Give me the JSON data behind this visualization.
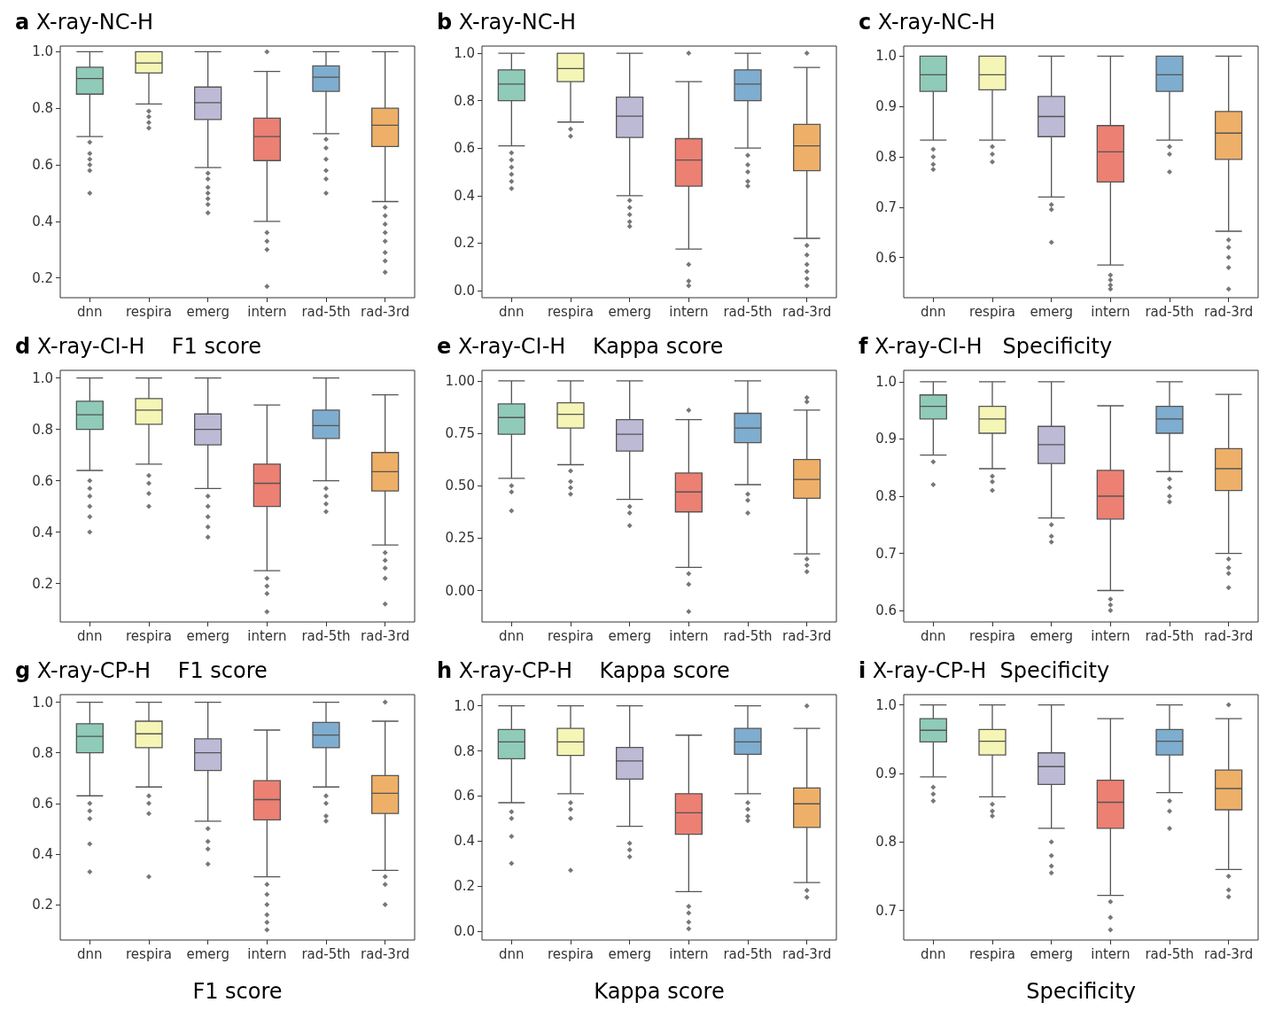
{
  "chart_data": [
    {
      "type": "box",
      "title": "a X-ray-NC-H",
      "categories": [
        "dnn",
        "respira",
        "emerg",
        "intern",
        "rad-5th",
        "rad-3rd"
      ],
      "colors": [
        "#8fcbb8",
        "#f5f5b5",
        "#bdbad6",
        "#ec8073",
        "#7fadcf",
        "#eeb068"
      ],
      "ylim": [
        0.13,
        1.02
      ],
      "yticks": [
        {
          "value": 0.2,
          "label": "0.2"
        },
        {
          "value": 0.4,
          "label": "0.4"
        },
        {
          "value": 0.6,
          "label": "0.6"
        },
        {
          "value": 0.8,
          "label": "0.8"
        },
        {
          "value": 1.0,
          "label": "1.0"
        }
      ],
      "grid": false,
      "marker": "diamond",
      "boxes": [
        {
          "low": 0.7,
          "q1": 0.85,
          "median": 0.905,
          "q3": 0.945,
          "high": 1.0,
          "outliers": [
            0.68,
            0.64,
            0.62,
            0.6,
            0.58,
            0.5
          ]
        },
        {
          "low": 0.815,
          "q1": 0.925,
          "median": 0.96,
          "q3": 1.0,
          "high": 1.0,
          "outliers": [
            0.79,
            0.77,
            0.75,
            0.73
          ]
        },
        {
          "low": 0.59,
          "q1": 0.76,
          "median": 0.82,
          "q3": 0.875,
          "high": 1.0,
          "outliers": [
            0.57,
            0.55,
            0.52,
            0.5,
            0.48,
            0.46,
            0.43
          ]
        },
        {
          "low": 0.4,
          "q1": 0.615,
          "median": 0.7,
          "q3": 0.765,
          "high": 0.93,
          "outliers": [
            1.0,
            0.36,
            0.33,
            0.3,
            0.17
          ]
        },
        {
          "low": 0.71,
          "q1": 0.86,
          "median": 0.91,
          "q3": 0.95,
          "high": 1.0,
          "outliers": [
            0.69,
            0.66,
            0.62,
            0.58,
            0.55,
            0.5
          ]
        },
        {
          "low": 0.47,
          "q1": 0.665,
          "median": 0.74,
          "q3": 0.8,
          "high": 1.0,
          "outliers": [
            0.45,
            0.42,
            0.39,
            0.36,
            0.33,
            0.29,
            0.26,
            0.22
          ]
        }
      ]
    },
    {
      "type": "box",
      "title": "b X-ray-NC-H",
      "categories": [
        "dnn",
        "respira",
        "emerg",
        "intern",
        "rad-5th",
        "rad-3rd"
      ],
      "colors": [
        "#8fcbb8",
        "#f5f5b5",
        "#bdbad6",
        "#ec8073",
        "#7fadcf",
        "#eeb068"
      ],
      "ylim": [
        -0.03,
        1.03
      ],
      "yticks": [
        {
          "value": 0,
          "label": "0.0"
        },
        {
          "value": 0.2,
          "label": "0.2"
        },
        {
          "value": 0.4,
          "label": "0.4"
        },
        {
          "value": 0.6,
          "label": "0.6"
        },
        {
          "value": 0.8,
          "label": "0.8"
        },
        {
          "value": 1.0,
          "label": "1.0"
        }
      ],
      "grid": false,
      "marker": "diamond",
      "boxes": [
        {
          "low": 0.61,
          "q1": 0.8,
          "median": 0.87,
          "q3": 0.93,
          "high": 1.0,
          "outliers": [
            0.58,
            0.55,
            0.52,
            0.49,
            0.46,
            0.43
          ]
        },
        {
          "low": 0.71,
          "q1": 0.88,
          "median": 0.935,
          "q3": 1.0,
          "high": 1.0,
          "outliers": [
            0.68,
            0.65
          ]
        },
        {
          "low": 0.4,
          "q1": 0.645,
          "median": 0.735,
          "q3": 0.815,
          "high": 1.0,
          "outliers": [
            0.38,
            0.35,
            0.32,
            0.29,
            0.27
          ]
        },
        {
          "low": 0.175,
          "q1": 0.44,
          "median": 0.55,
          "q3": 0.64,
          "high": 0.88,
          "outliers": [
            1.0,
            0.11,
            0.04,
            0.02
          ]
        },
        {
          "low": 0.6,
          "q1": 0.8,
          "median": 0.87,
          "q3": 0.93,
          "high": 1.0,
          "outliers": [
            0.57,
            0.53,
            0.5,
            0.46,
            0.44
          ]
        },
        {
          "low": 0.22,
          "q1": 0.505,
          "median": 0.61,
          "q3": 0.7,
          "high": 0.94,
          "outliers": [
            1.0,
            0.19,
            0.15,
            0.11,
            0.08,
            0.05,
            0.02
          ]
        }
      ]
    },
    {
      "type": "box",
      "title": "c X-ray-NC-H",
      "categories": [
        "dnn",
        "respira",
        "emerg",
        "intern",
        "rad-5th",
        "rad-3rd"
      ],
      "colors": [
        "#8fcbb8",
        "#f5f5b5",
        "#bdbad6",
        "#ec8073",
        "#7fadcf",
        "#eeb068"
      ],
      "ylim": [
        0.52,
        1.02
      ],
      "yticks": [
        {
          "value": 0.6,
          "label": "0.6"
        },
        {
          "value": 0.7,
          "label": "0.7"
        },
        {
          "value": 0.8,
          "label": "0.8"
        },
        {
          "value": 0.9,
          "label": "0.9"
        },
        {
          "value": 1.0,
          "label": "1.0"
        }
      ],
      "grid": false,
      "marker": "diamond",
      "boxes": [
        {
          "low": 0.833,
          "q1": 0.93,
          "median": 0.963,
          "q3": 1.0,
          "high": 1.0,
          "outliers": [
            0.815,
            0.8,
            0.785,
            0.775
          ]
        },
        {
          "low": 0.833,
          "q1": 0.933,
          "median": 0.963,
          "q3": 1.0,
          "high": 1.0,
          "outliers": [
            0.82,
            0.805,
            0.79
          ]
        },
        {
          "low": 0.72,
          "q1": 0.84,
          "median": 0.88,
          "q3": 0.92,
          "high": 1.0,
          "outliers": [
            0.705,
            0.695,
            0.63
          ]
        },
        {
          "low": 0.585,
          "q1": 0.75,
          "median": 0.81,
          "q3": 0.862,
          "high": 1.0,
          "outliers": [
            0.565,
            0.555,
            0.545,
            0.537
          ]
        },
        {
          "low": 0.833,
          "q1": 0.93,
          "median": 0.963,
          "q3": 1.0,
          "high": 1.0,
          "outliers": [
            0.82,
            0.805,
            0.77
          ]
        },
        {
          "low": 0.652,
          "q1": 0.795,
          "median": 0.847,
          "q3": 0.89,
          "high": 1.0,
          "outliers": [
            0.635,
            0.62,
            0.6,
            0.58,
            0.537
          ]
        }
      ]
    },
    {
      "type": "box",
      "title": "d X-ray-CI-H    F1 score",
      "categories": [
        "dnn",
        "respira",
        "emerg",
        "intern",
        "rad-5th",
        "rad-3rd"
      ],
      "colors": [
        "#8fcbb8",
        "#f5f5b5",
        "#bdbad6",
        "#ec8073",
        "#7fadcf",
        "#eeb068"
      ],
      "ylim": [
        0.05,
        1.03
      ],
      "yticks": [
        {
          "value": 0.2,
          "label": "0.2"
        },
        {
          "value": 0.4,
          "label": "0.4"
        },
        {
          "value": 0.6,
          "label": "0.6"
        },
        {
          "value": 0.8,
          "label": "0.8"
        },
        {
          "value": 1.0,
          "label": "1.0"
        }
      ],
      "grid": false,
      "marker": "diamond",
      "boxes": [
        {
          "low": 0.64,
          "q1": 0.8,
          "median": 0.857,
          "q3": 0.91,
          "high": 1.0,
          "outliers": [
            0.6,
            0.57,
            0.54,
            0.5,
            0.46,
            0.4
          ]
        },
        {
          "low": 0.665,
          "q1": 0.82,
          "median": 0.875,
          "q3": 0.92,
          "high": 1.0,
          "outliers": [
            0.62,
            0.59,
            0.55,
            0.5
          ]
        },
        {
          "low": 0.57,
          "q1": 0.74,
          "median": 0.8,
          "q3": 0.86,
          "high": 1.0,
          "outliers": [
            0.54,
            0.5,
            0.46,
            0.42,
            0.38
          ]
        },
        {
          "low": 0.25,
          "q1": 0.5,
          "median": 0.59,
          "q3": 0.665,
          "high": 0.895,
          "outliers": [
            0.22,
            0.19,
            0.16,
            0.09
          ]
        },
        {
          "low": 0.6,
          "q1": 0.765,
          "median": 0.815,
          "q3": 0.875,
          "high": 1.0,
          "outliers": [
            0.57,
            0.54,
            0.51,
            0.48
          ]
        },
        {
          "low": 0.35,
          "q1": 0.56,
          "median": 0.635,
          "q3": 0.71,
          "high": 0.935,
          "outliers": [
            0.32,
            0.29,
            0.26,
            0.22,
            0.12
          ]
        }
      ]
    },
    {
      "type": "box",
      "title": "e X-ray-CI-H    Kappa score",
      "categories": [
        "dnn",
        "respira",
        "emerg",
        "intern",
        "rad-5th",
        "rad-3rd"
      ],
      "colors": [
        "#8fcbb8",
        "#f5f5b5",
        "#bdbad6",
        "#ec8073",
        "#7fadcf",
        "#eeb068"
      ],
      "ylim": [
        -0.15,
        1.05
      ],
      "yticks": [
        {
          "value": 0,
          "label": "0.00"
        },
        {
          "value": 0.25,
          "label": "0.25"
        },
        {
          "value": 0.5,
          "label": "0.50"
        },
        {
          "value": 0.75,
          "label": "0.75"
        },
        {
          "value": 1.0,
          "label": "1.00"
        }
      ],
      "grid": false,
      "marker": "diamond",
      "boxes": [
        {
          "low": 0.535,
          "q1": 0.745,
          "median": 0.825,
          "q3": 0.89,
          "high": 1.0,
          "outliers": [
            0.5,
            0.47,
            0.38
          ]
        },
        {
          "low": 0.6,
          "q1": 0.775,
          "median": 0.84,
          "q3": 0.895,
          "high": 1.0,
          "outliers": [
            0.57,
            0.52,
            0.49,
            0.46
          ]
        },
        {
          "low": 0.435,
          "q1": 0.665,
          "median": 0.745,
          "q3": 0.815,
          "high": 1.0,
          "outliers": [
            0.4,
            0.37,
            0.31
          ]
        },
        {
          "low": 0.11,
          "q1": 0.375,
          "median": 0.47,
          "q3": 0.56,
          "high": 0.815,
          "outliers": [
            0.86,
            0.08,
            0.03,
            -0.1
          ]
        },
        {
          "low": 0.505,
          "q1": 0.705,
          "median": 0.775,
          "q3": 0.845,
          "high": 1.0,
          "outliers": [
            0.46,
            0.43,
            0.37
          ]
        },
        {
          "low": 0.175,
          "q1": 0.44,
          "median": 0.53,
          "q3": 0.625,
          "high": 0.86,
          "outliers": [
            0.92,
            0.9,
            0.15,
            0.12,
            0.09
          ]
        }
      ]
    },
    {
      "type": "box",
      "title": "f X-ray-CI-H   Specificity",
      "categories": [
        "dnn",
        "respira",
        "emerg",
        "intern",
        "rad-5th",
        "rad-3rd"
      ],
      "colors": [
        "#8fcbb8",
        "#f5f5b5",
        "#bdbad6",
        "#ec8073",
        "#7fadcf",
        "#eeb068"
      ],
      "ylim": [
        0.58,
        1.02
      ],
      "yticks": [
        {
          "value": 0.6,
          "label": "0.6"
        },
        {
          "value": 0.7,
          "label": "0.7"
        },
        {
          "value": 0.8,
          "label": "0.8"
        },
        {
          "value": 0.9,
          "label": "0.9"
        },
        {
          "value": 1.0,
          "label": "1.0"
        }
      ],
      "grid": false,
      "marker": "diamond",
      "boxes": [
        {
          "low": 0.872,
          "q1": 0.935,
          "median": 0.957,
          "q3": 0.977,
          "high": 1.0,
          "outliers": [
            0.86,
            0.82
          ]
        },
        {
          "low": 0.848,
          "q1": 0.91,
          "median": 0.935,
          "q3": 0.957,
          "high": 1.0,
          "outliers": [
            0.835,
            0.825,
            0.81
          ]
        },
        {
          "low": 0.762,
          "q1": 0.857,
          "median": 0.89,
          "q3": 0.922,
          "high": 1.0,
          "outliers": [
            0.75,
            0.73,
            0.72
          ]
        },
        {
          "low": 0.635,
          "q1": 0.76,
          "median": 0.8,
          "q3": 0.845,
          "high": 0.958,
          "outliers": [
            0.62,
            0.61,
            0.6
          ]
        },
        {
          "low": 0.843,
          "q1": 0.91,
          "median": 0.935,
          "q3": 0.957,
          "high": 1.0,
          "outliers": [
            0.83,
            0.815,
            0.8,
            0.79
          ]
        },
        {
          "low": 0.7,
          "q1": 0.81,
          "median": 0.848,
          "q3": 0.883,
          "high": 0.978,
          "outliers": [
            0.69,
            0.675,
            0.665,
            0.64
          ]
        }
      ]
    },
    {
      "type": "box",
      "title": "g X-ray-CP-H    F1 score",
      "xlabel": "F1 score",
      "categories": [
        "dnn",
        "respira",
        "emerg",
        "intern",
        "rad-5th",
        "rad-3rd"
      ],
      "colors": [
        "#8fcbb8",
        "#f5f5b5",
        "#bdbad6",
        "#ec8073",
        "#7fadcf",
        "#eeb068"
      ],
      "ylim": [
        0.06,
        1.03
      ],
      "yticks": [
        {
          "value": 0.2,
          "label": "0.2"
        },
        {
          "value": 0.4,
          "label": "0.4"
        },
        {
          "value": 0.6,
          "label": "0.6"
        },
        {
          "value": 0.8,
          "label": "0.8"
        },
        {
          "value": 1.0,
          "label": "1.0"
        }
      ],
      "grid": false,
      "marker": "diamond",
      "boxes": [
        {
          "low": 0.63,
          "q1": 0.8,
          "median": 0.865,
          "q3": 0.915,
          "high": 1.0,
          "outliers": [
            0.6,
            0.57,
            0.54,
            0.44,
            0.33
          ]
        },
        {
          "low": 0.665,
          "q1": 0.82,
          "median": 0.875,
          "q3": 0.925,
          "high": 1.0,
          "outliers": [
            0.63,
            0.6,
            0.56,
            0.31
          ]
        },
        {
          "low": 0.53,
          "q1": 0.73,
          "median": 0.8,
          "q3": 0.855,
          "high": 1.0,
          "outliers": [
            0.5,
            0.45,
            0.42,
            0.36
          ]
        },
        {
          "low": 0.31,
          "q1": 0.535,
          "median": 0.615,
          "q3": 0.69,
          "high": 0.89,
          "outliers": [
            0.28,
            0.24,
            0.2,
            0.16,
            0.13,
            0.1
          ]
        },
        {
          "low": 0.665,
          "q1": 0.82,
          "median": 0.87,
          "q3": 0.92,
          "high": 1.0,
          "outliers": [
            0.63,
            0.6,
            0.55,
            0.53
          ]
        },
        {
          "low": 0.335,
          "q1": 0.56,
          "median": 0.64,
          "q3": 0.71,
          "high": 0.925,
          "outliers": [
            1.0,
            0.31,
            0.28,
            0.2
          ]
        }
      ]
    },
    {
      "type": "box",
      "title": "h X-ray-CP-H    Kappa score",
      "xlabel": "Kappa score",
      "categories": [
        "dnn",
        "respira",
        "emerg",
        "intern",
        "rad-5th",
        "rad-3rd"
      ],
      "colors": [
        "#8fcbb8",
        "#f5f5b5",
        "#bdbad6",
        "#ec8073",
        "#7fadcf",
        "#eeb068"
      ],
      "ylim": [
        -0.04,
        1.05
      ],
      "yticks": [
        {
          "value": 0,
          "label": "0.0"
        },
        {
          "value": 0.2,
          "label": "0.2"
        },
        {
          "value": 0.4,
          "label": "0.4"
        },
        {
          "value": 0.6,
          "label": "0.6"
        },
        {
          "value": 0.8,
          "label": "0.8"
        },
        {
          "value": 1.0,
          "label": "1.0"
        }
      ],
      "grid": false,
      "marker": "diamond",
      "boxes": [
        {
          "low": 0.57,
          "q1": 0.765,
          "median": 0.84,
          "q3": 0.895,
          "high": 1.0,
          "outliers": [
            0.53,
            0.5,
            0.42,
            0.3
          ]
        },
        {
          "low": 0.61,
          "q1": 0.78,
          "median": 0.84,
          "q3": 0.9,
          "high": 1.0,
          "outliers": [
            0.57,
            0.54,
            0.5,
            0.27
          ]
        },
        {
          "low": 0.465,
          "q1": 0.675,
          "median": 0.755,
          "q3": 0.815,
          "high": 1.0,
          "outliers": [
            0.39,
            0.36,
            0.33
          ]
        },
        {
          "low": 0.175,
          "q1": 0.43,
          "median": 0.525,
          "q3": 0.61,
          "high": 0.87,
          "outliers": [
            0.11,
            0.08,
            0.04,
            0.01
          ]
        },
        {
          "low": 0.61,
          "q1": 0.785,
          "median": 0.84,
          "q3": 0.9,
          "high": 1.0,
          "outliers": [
            0.57,
            0.54,
            0.51,
            0.49
          ]
        },
        {
          "low": 0.215,
          "q1": 0.46,
          "median": 0.565,
          "q3": 0.635,
          "high": 0.9,
          "outliers": [
            1.0,
            0.18,
            0.15
          ]
        }
      ]
    },
    {
      "type": "box",
      "title": "i X-ray-CP-H  Specificity",
      "xlabel": "Specificity",
      "categories": [
        "dnn",
        "respira",
        "emerg",
        "intern",
        "rad-5th",
        "rad-3rd"
      ],
      "colors": [
        "#8fcbb8",
        "#f5f5b5",
        "#bdbad6",
        "#ec8073",
        "#7fadcf",
        "#eeb068"
      ],
      "ylim": [
        0.657,
        1.015
      ],
      "yticks": [
        {
          "value": 0.7,
          "label": "0.7"
        },
        {
          "value": 0.8,
          "label": "0.8"
        },
        {
          "value": 0.9,
          "label": "0.9"
        },
        {
          "value": 1.0,
          "label": "1.0"
        }
      ],
      "grid": false,
      "marker": "diamond",
      "boxes": [
        {
          "low": 0.895,
          "q1": 0.946,
          "median": 0.963,
          "q3": 0.98,
          "high": 1.0,
          "outliers": [
            0.88,
            0.87,
            0.86
          ]
        },
        {
          "low": 0.866,
          "q1": 0.927,
          "median": 0.947,
          "q3": 0.964,
          "high": 1.0,
          "outliers": [
            0.855,
            0.845,
            0.838
          ]
        },
        {
          "low": 0.82,
          "q1": 0.884,
          "median": 0.91,
          "q3": 0.93,
          "high": 1.0,
          "outliers": [
            0.8,
            0.78,
            0.765,
            0.755
          ]
        },
        {
          "low": 0.722,
          "q1": 0.82,
          "median": 0.858,
          "q3": 0.89,
          "high": 0.98,
          "outliers": [
            0.713,
            0.69,
            0.672
          ]
        },
        {
          "low": 0.872,
          "q1": 0.927,
          "median": 0.947,
          "q3": 0.964,
          "high": 1.0,
          "outliers": [
            0.86,
            0.845,
            0.82
          ]
        },
        {
          "low": 0.76,
          "q1": 0.847,
          "median": 0.878,
          "q3": 0.905,
          "high": 0.98,
          "outliers": [
            1.0,
            0.75,
            0.73,
            0.72
          ]
        }
      ]
    }
  ]
}
